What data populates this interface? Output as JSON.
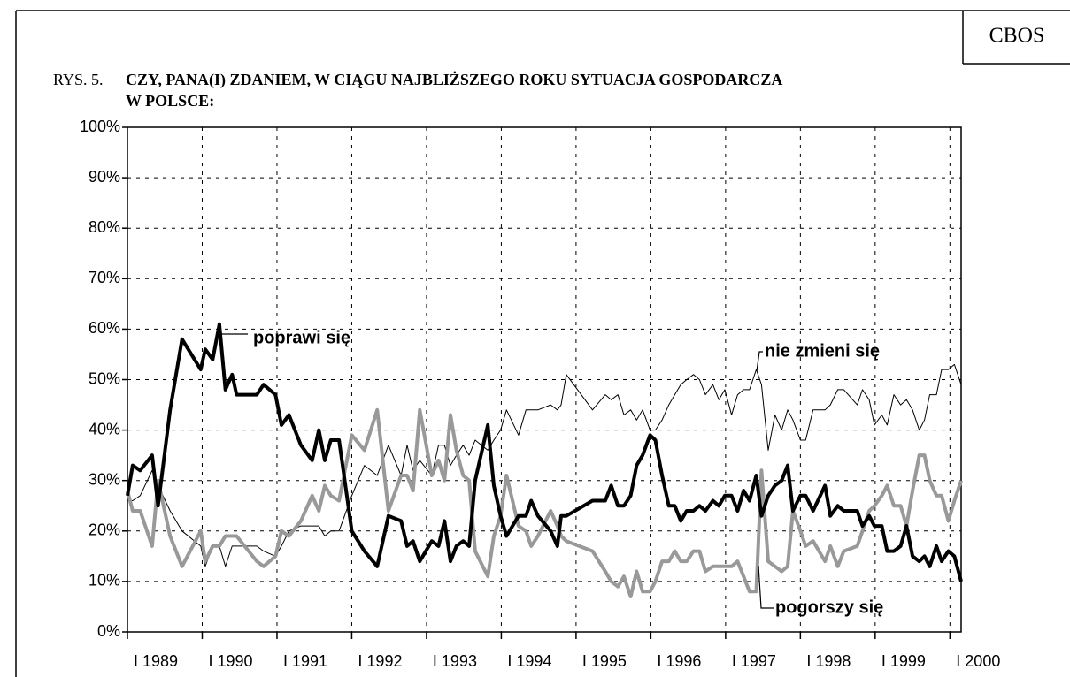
{
  "chart_data": {
    "type": "line",
    "source": "CBOS",
    "title_prefix": "RYS. 5.",
    "title": [
      "CZY, PANA(I) ZDANIEM, W CIĄGU NAJBLIŻSZEGO ROKU SYTUACJA GOSPODARCZA",
      "W POLSCE:"
    ],
    "x": [
      1989.0,
      1989.07,
      1989.17,
      1989.33,
      1989.41,
      1989.57,
      1989.73,
      1989.98,
      1990.04,
      1990.14,
      1990.23,
      1990.31,
      1990.4,
      1990.46,
      1990.73,
      1990.82,
      1990.98,
      1991.06,
      1991.16,
      1991.32,
      1991.47,
      1991.56,
      1991.64,
      1991.72,
      1991.83,
      1992.0,
      1992.17,
      1992.34,
      1992.49,
      1992.66,
      1992.74,
      1992.82,
      1992.91,
      1993.07,
      1993.16,
      1993.24,
      1993.32,
      1993.4,
      1993.49,
      1993.57,
      1993.65,
      1993.82,
      1993.9,
      1993.99,
      1994.07,
      1994.23,
      1994.33,
      1994.4,
      1994.49,
      1994.66,
      1994.75,
      1994.8,
      1994.87,
      1995.22,
      1995.39,
      1995.47,
      1995.56,
      1995.64,
      1995.73,
      1995.81,
      1995.89,
      1995.99,
      1996.06,
      1996.15,
      1996.24,
      1996.32,
      1996.4,
      1996.48,
      1996.57,
      1996.65,
      1996.73,
      1996.83,
      1996.91,
      1996.99,
      1997.08,
      1997.16,
      1997.24,
      1997.32,
      1997.41,
      1997.48,
      1997.57,
      1997.66,
      1997.75,
      1997.83,
      1997.9,
      1998.0,
      1998.07,
      1998.17,
      1998.33,
      1998.4,
      1998.5,
      1998.58,
      1998.76,
      1998.83,
      1998.92,
      1998.99,
      1999.09,
      1999.16,
      1999.25,
      1999.34,
      1999.42,
      1999.5,
      1999.59,
      1999.66,
      1999.73,
      1999.82,
      1999.89,
      1999.98,
      2000.06,
      2000.15
    ],
    "series": [
      {
        "name": "poprawi się",
        "color": "#000000",
        "width": 4,
        "values": [
          27,
          33,
          32,
          35,
          25,
          44,
          58,
          52,
          56,
          54,
          61,
          48,
          51,
          47,
          47,
          49,
          47,
          41,
          43,
          37,
          34,
          40,
          34,
          38,
          38,
          20,
          16,
          13,
          23,
          22,
          17,
          18,
          14,
          18,
          17,
          22,
          14,
          17,
          18,
          17,
          30,
          41,
          29,
          23,
          19,
          23,
          23,
          26,
          23,
          20,
          17,
          23,
          23,
          26,
          26,
          29,
          25,
          25,
          27,
          33,
          35,
          39,
          38,
          31,
          25,
          25,
          22,
          24,
          24,
          25,
          24,
          26,
          25,
          27,
          27,
          24,
          28,
          26,
          31,
          23,
          27,
          29,
          30,
          33,
          24,
          27,
          27,
          24,
          29,
          23,
          25,
          24,
          24,
          21,
          23,
          21,
          21,
          16,
          16,
          17,
          21,
          15,
          14,
          15,
          13,
          17,
          14,
          16,
          15,
          10
        ]
      },
      {
        "name": "nie zmieni się",
        "color": "#000000",
        "width": 1,
        "values": [
          26,
          26,
          27,
          32,
          29,
          24,
          20,
          17,
          13,
          17,
          17,
          13,
          17,
          17,
          17,
          16,
          15,
          17,
          20,
          21,
          21,
          21,
          19,
          20,
          20,
          27,
          33,
          31,
          37,
          31,
          37,
          32,
          34,
          31,
          37,
          37,
          33,
          35,
          37,
          35,
          38,
          36,
          38,
          40,
          44,
          39,
          44,
          44,
          44,
          45,
          44,
          45,
          51,
          44,
          47,
          46,
          47,
          43,
          44,
          42,
          44,
          40,
          40,
          42,
          45,
          47,
          49,
          50,
          51,
          50,
          47,
          49,
          46,
          48,
          43,
          47,
          48,
          48,
          52,
          49,
          36,
          43,
          40,
          44,
          42,
          38,
          38,
          44,
          44,
          45,
          48,
          48,
          45,
          48,
          46,
          41,
          43,
          41,
          47,
          45,
          46,
          44,
          40,
          42,
          47,
          47,
          52,
          52,
          53,
          49
        ]
      },
      {
        "name": "pogorszy się",
        "color": "#999999",
        "width": 4,
        "values": [
          28,
          24,
          24,
          17,
          30,
          19,
          13,
          20,
          14,
          17,
          17,
          19,
          19,
          19,
          14,
          13,
          15,
          20,
          19,
          22,
          27,
          24,
          29,
          27,
          26,
          39,
          36,
          44,
          24,
          31,
          31,
          28,
          44,
          31,
          34,
          30,
          43,
          36,
          31,
          30,
          16,
          11,
          19,
          23,
          31,
          21,
          20,
          17,
          19,
          24,
          21,
          19,
          18,
          16,
          12,
          10,
          9,
          11,
          7,
          12,
          8,
          8,
          10,
          14,
          14,
          16,
          14,
          14,
          16,
          16,
          12,
          13,
          13,
          13,
          13,
          14,
          11,
          8,
          8,
          32,
          14,
          13,
          12,
          13,
          24,
          20,
          17,
          18,
          14,
          17,
          13,
          16,
          17,
          20,
          24,
          25,
          27,
          29,
          25,
          25,
          21,
          28,
          35,
          35,
          30,
          27,
          27,
          22,
          26,
          30
        ]
      }
    ],
    "xlim": [
      1989,
      2000.15
    ],
    "xticks": [
      {
        "value": 1989,
        "label": "I 1989"
      },
      {
        "value": 1990,
        "label": "I 1990"
      },
      {
        "value": 1991,
        "label": "I 1991"
      },
      {
        "value": 1992,
        "label": "I 1992"
      },
      {
        "value": 1993,
        "label": "I 1993"
      },
      {
        "value": 1994,
        "label": "I 1994"
      },
      {
        "value": 1995,
        "label": "I 1995"
      },
      {
        "value": 1996,
        "label": "I 1996"
      },
      {
        "value": 1997,
        "label": "I 1997"
      },
      {
        "value": 1998,
        "label": "I 1998"
      },
      {
        "value": 1999,
        "label": "I 1999"
      },
      {
        "value": 2000,
        "label": "I 2000"
      }
    ],
    "ylim": [
      0,
      100
    ],
    "yticks": [
      {
        "value": 0,
        "label": "0%"
      },
      {
        "value": 10,
        "label": "10%"
      },
      {
        "value": 20,
        "label": "20%"
      },
      {
        "value": 30,
        "label": "30%"
      },
      {
        "value": 40,
        "label": "40%"
      },
      {
        "value": 50,
        "label": "50%"
      },
      {
        "value": 60,
        "label": "60%"
      },
      {
        "value": 70,
        "label": "70%"
      },
      {
        "value": 80,
        "label": "80%"
      },
      {
        "value": 90,
        "label": "90%"
      },
      {
        "value": 100,
        "label": "100%"
      }
    ],
    "grid": true
  }
}
